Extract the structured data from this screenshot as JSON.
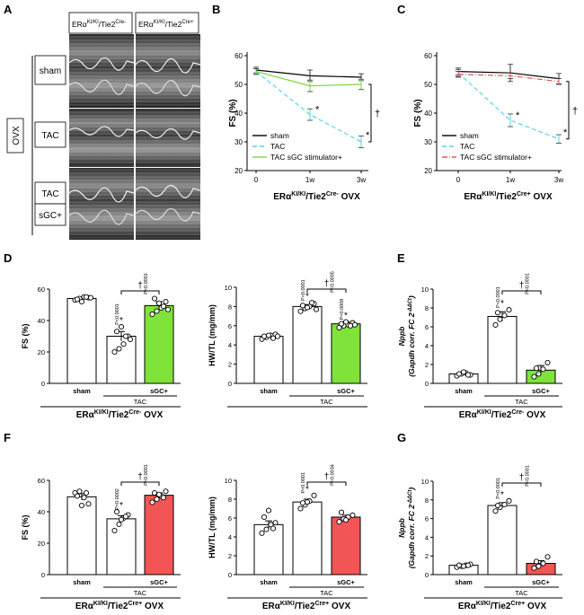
{
  "panel_letters": {
    "A": "A",
    "B": "B",
    "C": "C",
    "D": "D",
    "E": "E",
    "F": "F",
    "G": "G"
  },
  "panelA": {
    "col_header_1": "ERα",
    "col_header_1_sup": "KI/KI",
    "col_header_1_tail": "/Tie2",
    "col_header_1_sup2": "Cre-",
    "col_header_2": "ERα",
    "col_header_2_sup": "KI/KI",
    "col_header_2_tail": "/Tie2",
    "col_header_2_sup2": "Cre+",
    "ovx_label": "OVX",
    "row_labels": [
      "sham",
      "TAC",
      "TAC",
      "sGC+"
    ]
  },
  "chart_data": [
    {
      "id": "B",
      "type": "line",
      "x": [
        "0",
        "1w",
        "3w"
      ],
      "ylabel": "FS (%)",
      "ylim": [
        20,
        60
      ],
      "yticks": [
        20,
        30,
        40,
        50,
        60
      ],
      "xlabel_main": "ERα",
      "xlabel_sup": "KI/KI",
      "xlabel_mid": "/Tie2",
      "xlabel_sup2": "Cre-",
      "xlabel_tail": " OVX",
      "series": [
        {
          "name": "sham",
          "color": "#000000",
          "style": "solid",
          "values": [
            55,
            53,
            52.5
          ],
          "err": [
            1,
            2,
            1.2
          ]
        },
        {
          "name": "TAC",
          "color": "#5ad3e6",
          "style": "dashed",
          "values": [
            54.5,
            39.5,
            30
          ],
          "err": [
            1,
            2,
            2
          ]
        },
        {
          "name": "TAC sGC stimulator+",
          "color": "#7fd43a",
          "style": "solid",
          "values": [
            54.5,
            49.5,
            50
          ],
          "err": [
            1,
            2,
            1.8
          ]
        }
      ],
      "stars": [
        "*",
        "*"
      ],
      "dagger": "†"
    },
    {
      "id": "C",
      "type": "line",
      "x": [
        "0",
        "1w",
        "3w"
      ],
      "ylabel": "FS (%)",
      "ylim": [
        20,
        60
      ],
      "yticks": [
        20,
        30,
        40,
        50,
        60
      ],
      "xlabel_main": "ERα",
      "xlabel_sup": "KI/KI",
      "xlabel_mid": "/Tie2",
      "xlabel_sup2": "Cre+",
      "xlabel_tail": " OVX",
      "series": [
        {
          "name": "sham",
          "color": "#000000",
          "style": "solid",
          "values": [
            54.5,
            54,
            52
          ],
          "err": [
            1.2,
            3,
            1.8
          ]
        },
        {
          "name": "TAC",
          "color": "#5ad3e6",
          "style": "dashed",
          "values": [
            54,
            37.5,
            31
          ],
          "err": [
            1.2,
            2.2,
            1.5
          ]
        },
        {
          "name": "TAC sGC stimulator+",
          "color": "#e05a5a",
          "style": "dashdot",
          "values": [
            53.5,
            53,
            51
          ],
          "err": [
            1,
            1,
            1
          ]
        }
      ],
      "stars": [
        "*",
        "*"
      ],
      "dagger": "†"
    },
    {
      "id": "D1",
      "type": "bar",
      "ylabel": "FS (%)",
      "ylim": [
        0,
        60
      ],
      "yticks": [
        0,
        20,
        40,
        60
      ],
      "categories": [
        "sham",
        "",
        "sGC+"
      ],
      "group_label": "TAC",
      "xlabel_main": "ERα",
      "xlabel_sup": "KI/KI",
      "xlabel_mid": "/Tie2",
      "xlabel_sup2": "Cre-",
      "xlabel_tail": " OVX",
      "fills": [
        "#ffffff",
        "#ffffff",
        "#7fe33a"
      ],
      "values": [
        54,
        30,
        49.5
      ],
      "err": [
        0.8,
        3,
        2.5
      ],
      "points": [
        [
          53,
          54,
          55,
          54.5,
          53.5,
          52,
          55,
          54.5
        ],
        [
          20,
          22,
          25,
          30,
          33,
          36,
          30,
          28
        ],
        [
          44,
          46,
          48,
          52,
          54,
          51,
          49,
          47
        ]
      ],
      "annot": [
        "P<0.0001",
        "*"
      ],
      "bracket_p": "P<0.0001",
      "dagger": "†"
    },
    {
      "id": "D2",
      "type": "bar",
      "ylabel": "HW/TL (mg/mm)",
      "ylim": [
        0,
        10
      ],
      "yticks": [
        0,
        2,
        4,
        6,
        8,
        10
      ],
      "categories": [
        "sham",
        "",
        "sGC+"
      ],
      "group_label": "TAC",
      "xlabel_main": "",
      "xlabel_sup": "",
      "xlabel_mid": "",
      "xlabel_sup2": "",
      "xlabel_tail": "",
      "fills": [
        "#ffffff",
        "#ffffff",
        "#7fe33a"
      ],
      "values": [
        4.9,
        8.0,
        6.2
      ],
      "err": [
        0.15,
        0.2,
        0.2
      ],
      "points": [
        [
          4.6,
          4.8,
          5.0,
          5.1,
          4.9,
          5.0,
          4.7,
          4.9
        ],
        [
          7.5,
          7.8,
          8.0,
          8.3,
          8.1,
          7.9,
          8.4,
          7.7
        ],
        [
          5.8,
          6.0,
          6.1,
          6.3,
          6.2,
          6.4,
          6.0,
          6.1
        ]
      ],
      "annot": [
        "P<0.0001",
        "*",
        "P=0.0008",
        "*"
      ],
      "bracket_p": "P=0.0005",
      "dagger": "†"
    },
    {
      "id": "E",
      "type": "bar",
      "ylabel": "Nppb",
      "ylabel2": "(Gapdh corr. FC 2",
      "ylabel2_sup": "-ΔΔCt",
      "ylabel2_end": ")",
      "ylim": [
        0,
        10
      ],
      "yticks": [
        0,
        2,
        4,
        6,
        8,
        10
      ],
      "categories": [
        "sham",
        "",
        "sGC+"
      ],
      "group_label": "TAC",
      "xlabel_main": "ERα",
      "xlabel_sup": "KI/KI",
      "xlabel_mid": "/Tie2",
      "xlabel_sup2": "Cre-",
      "xlabel_tail": " OVX",
      "fills": [
        "#ffffff",
        "#ffffff",
        "#7fe33a"
      ],
      "values": [
        1.0,
        7.1,
        1.4
      ],
      "err": [
        0.1,
        0.5,
        0.5
      ],
      "points": [
        [
          0.8,
          1.0,
          1.1,
          0.9,
          1.0,
          1.2,
          0.9
        ],
        [
          6.2,
          6.8,
          7.2,
          7.8,
          7.5
        ],
        [
          0.7,
          1.0,
          1.5,
          2.2,
          1.6
        ]
      ],
      "annot": [
        "P<0.0001",
        "*"
      ],
      "bracket_p": "P<0.0001",
      "dagger": "†"
    },
    {
      "id": "F1",
      "type": "bar",
      "ylabel": "FS (%)",
      "ylim": [
        0,
        60
      ],
      "yticks": [
        0,
        20,
        40,
        60
      ],
      "categories": [
        "sham",
        "",
        "sGC+"
      ],
      "group_label": "TAC",
      "xlabel_main": "ERα",
      "xlabel_sup": "KI/KI",
      "xlabel_mid": "/Tie2",
      "xlabel_sup2": "Cre+",
      "xlabel_tail": " OVX",
      "fills": [
        "#ffffff",
        "#ffffff",
        "#f25555"
      ],
      "values": [
        49.5,
        35.5,
        50.5
      ],
      "err": [
        2,
        2,
        1.5
      ],
      "points": [
        [
          52,
          53,
          49,
          45,
          50,
          44,
          52
        ],
        [
          28,
          32,
          36,
          38,
          40,
          35,
          37
        ],
        [
          46,
          48,
          50,
          53,
          52,
          51,
          49
        ]
      ],
      "annot": [
        "P=0.0002",
        "*"
      ],
      "bracket_p": "P<0.0001",
      "dagger": "†"
    },
    {
      "id": "F2",
      "type": "bar",
      "ylabel": "HW/TL (mg/mm)",
      "ylim": [
        0,
        10
      ],
      "yticks": [
        0,
        2,
        4,
        6,
        8,
        10
      ],
      "categories": [
        "sham",
        "",
        "sGC+"
      ],
      "group_label": "TAC",
      "xlabel_main": "ERα",
      "xlabel_sup": "KI/KI",
      "xlabel_mid": "/Tie2",
      "xlabel_sup2": "Cre+",
      "xlabel_tail": " OVX",
      "fills": [
        "#ffffff",
        "#ffffff",
        "#f25555"
      ],
      "values": [
        5.3,
        7.7,
        6.1
      ],
      "err": [
        0.4,
        0.3,
        0.2
      ],
      "points": [
        [
          4.4,
          4.8,
          5.3,
          5.5,
          6.1,
          6.8,
          4.9
        ],
        [
          7.0,
          7.4,
          7.8,
          8.4,
          7.6,
          7.7
        ],
        [
          5.6,
          5.9,
          6.1,
          6.3,
          6.6,
          5.8
        ]
      ],
      "annot": [
        "P<0.0001",
        "*"
      ],
      "bracket_p": "P=0.0034",
      "dagger": "†"
    },
    {
      "id": "G",
      "type": "bar",
      "ylabel": "Nppb",
      "ylabel2": "(Gapdh corr. FC 2",
      "ylabel2_sup": "-ΔΔCt",
      "ylabel2_end": ")",
      "ylim": [
        0,
        10
      ],
      "yticks": [
        0,
        2,
        4,
        6,
        8,
        10
      ],
      "categories": [
        "sham",
        "",
        "sGC+"
      ],
      "group_label": "TAC",
      "xlabel_main": "ERα",
      "xlabel_sup": "KI/KI",
      "xlabel_mid": "/Tie2",
      "xlabel_sup2": "Cre+",
      "xlabel_tail": " OVX",
      "fills": [
        "#ffffff",
        "#ffffff",
        "#f25555"
      ],
      "values": [
        1.0,
        7.4,
        1.2
      ],
      "err": [
        0.1,
        0.3,
        0.3
      ],
      "points": [
        [
          0.8,
          0.9,
          1.0,
          1.1,
          1.0,
          0.9,
          1.0
        ],
        [
          6.8,
          7.2,
          7.5,
          7.9,
          7.4
        ],
        [
          0.7,
          0.9,
          1.2,
          1.9,
          1.4
        ]
      ],
      "annot": [
        "P<0.0001",
        "*"
      ],
      "bracket_p": "P<0.0001",
      "dagger": "†"
    }
  ]
}
